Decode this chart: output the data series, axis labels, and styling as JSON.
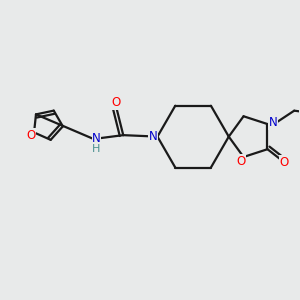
{
  "background_color": "#e8eaea",
  "bond_color": "#1a1a1a",
  "atom_colors": {
    "O": "#ff0000",
    "N": "#0000cc",
    "H": "#4a9090",
    "C": "#1a1a1a"
  },
  "figsize": [
    3.0,
    3.0
  ],
  "dpi": 100,
  "bond_lw": 1.6,
  "font_size": 8.5
}
